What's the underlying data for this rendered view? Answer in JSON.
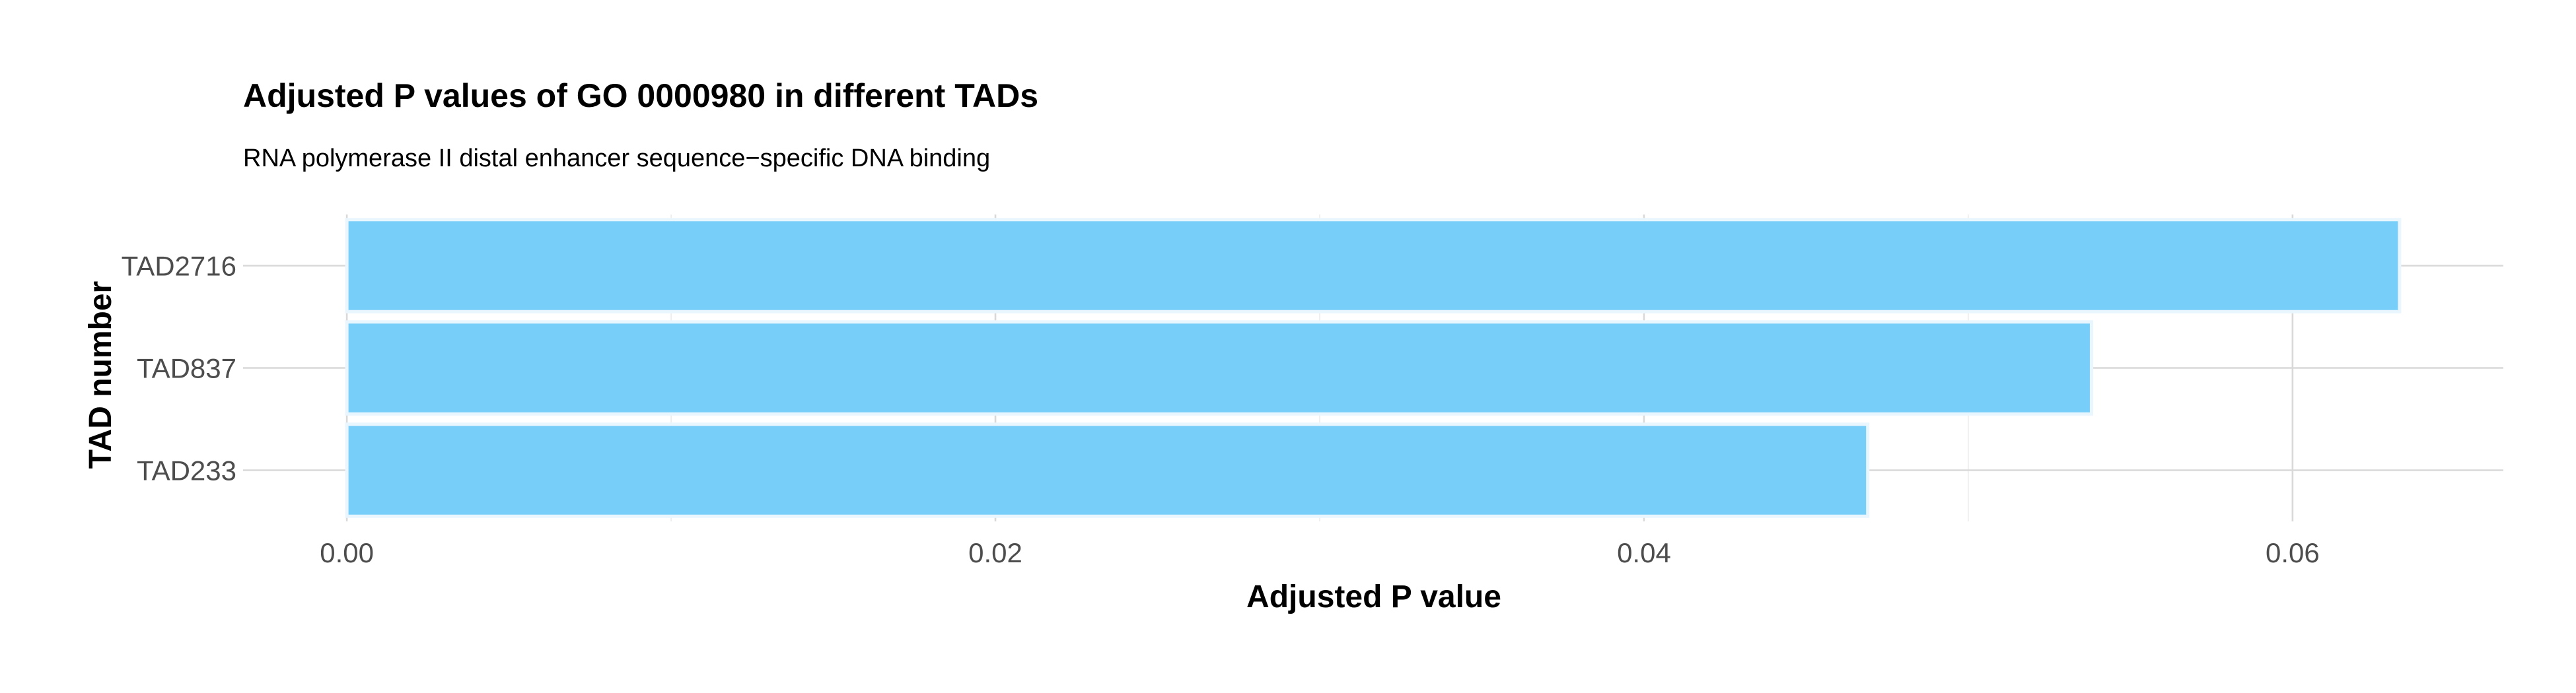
{
  "chart_data": {
    "type": "bar",
    "orientation": "horizontal",
    "title": "Adjusted P values of GO 0000980 in different TADs",
    "subtitle": "RNA polymerase II distal enhancer sequence−specific DNA binding",
    "xlabel": "Adjusted P value",
    "ylabel": "TAD number",
    "categories": [
      "TAD2716",
      "TAD837",
      "TAD233"
    ],
    "values": [
      0.0633,
      0.0538,
      0.0469
    ],
    "x_ticks": [
      0.0,
      0.02,
      0.04,
      0.06
    ],
    "x_tick_labels": [
      "0.00",
      "0.02",
      "0.04",
      "0.06"
    ],
    "xlim": [
      -0.0032,
      0.0665
    ],
    "grid": true,
    "bar_color": "#74CEF9",
    "bar_edge_color": "#EAF6FD"
  }
}
